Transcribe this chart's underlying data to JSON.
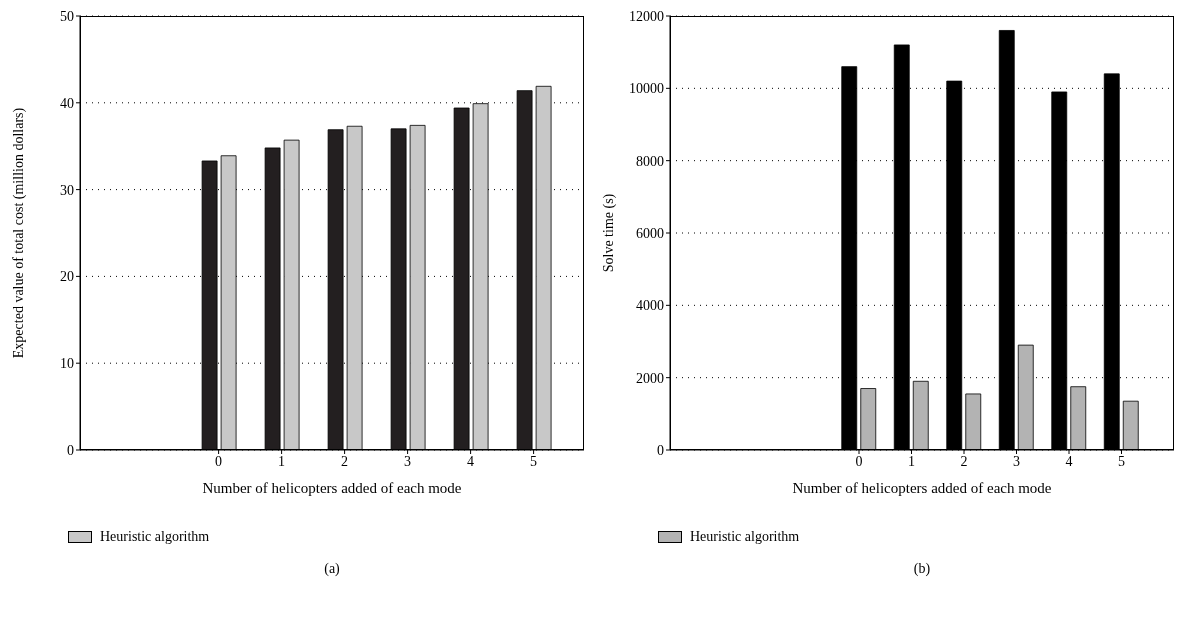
{
  "chart_data": [
    {
      "type": "bar",
      "xlabel": "Number of helicopters added of each mode",
      "ylabel": "Expected value of total cost (million dollars)",
      "x": [
        0,
        1,
        2,
        3,
        4,
        5
      ],
      "xlim": [
        -2.2,
        5.8
      ],
      "xticks": [
        0,
        1,
        2,
        3,
        4,
        5
      ],
      "ylim": [
        0,
        50
      ],
      "yticks": [
        0,
        10,
        20,
        30,
        40,
        50
      ],
      "grid": "y",
      "legend": "bottom left",
      "annotations": [
        "(a)"
      ],
      "series": [
        {
          "color": "#231f20",
          "values": [
            33.3,
            34.8,
            36.9,
            37.0,
            39.4,
            41.4
          ]
        },
        {
          "name": "Heuristic algorithm",
          "color": "#c8c8c8",
          "values": [
            33.9,
            35.7,
            37.3,
            37.4,
            39.9,
            41.9
          ]
        }
      ]
    },
    {
      "type": "bar",
      "xlabel": "Number of helicopters added of each mode",
      "ylabel": "Solve time (s)",
      "x": [
        0,
        1,
        2,
        3,
        4,
        5
      ],
      "xlim": [
        -3.6,
        6
      ],
      "xticks": [
        0,
        1,
        2,
        3,
        4,
        5
      ],
      "ylim": [
        0,
        12000
      ],
      "yticks": [
        0,
        2000,
        4000,
        6000,
        8000,
        10000,
        12000
      ],
      "grid": "y",
      "legend": "bottom left",
      "annotations": [
        "(b)"
      ],
      "series": [
        {
          "color": "#000000",
          "values": [
            10600,
            11200,
            10200,
            11600,
            9900,
            10400
          ]
        },
        {
          "name": "Heuristic algorithm",
          "color": "#b3b3b3",
          "values": [
            1700,
            1900,
            1550,
            2900,
            1750,
            1350
          ]
        }
      ]
    }
  ]
}
